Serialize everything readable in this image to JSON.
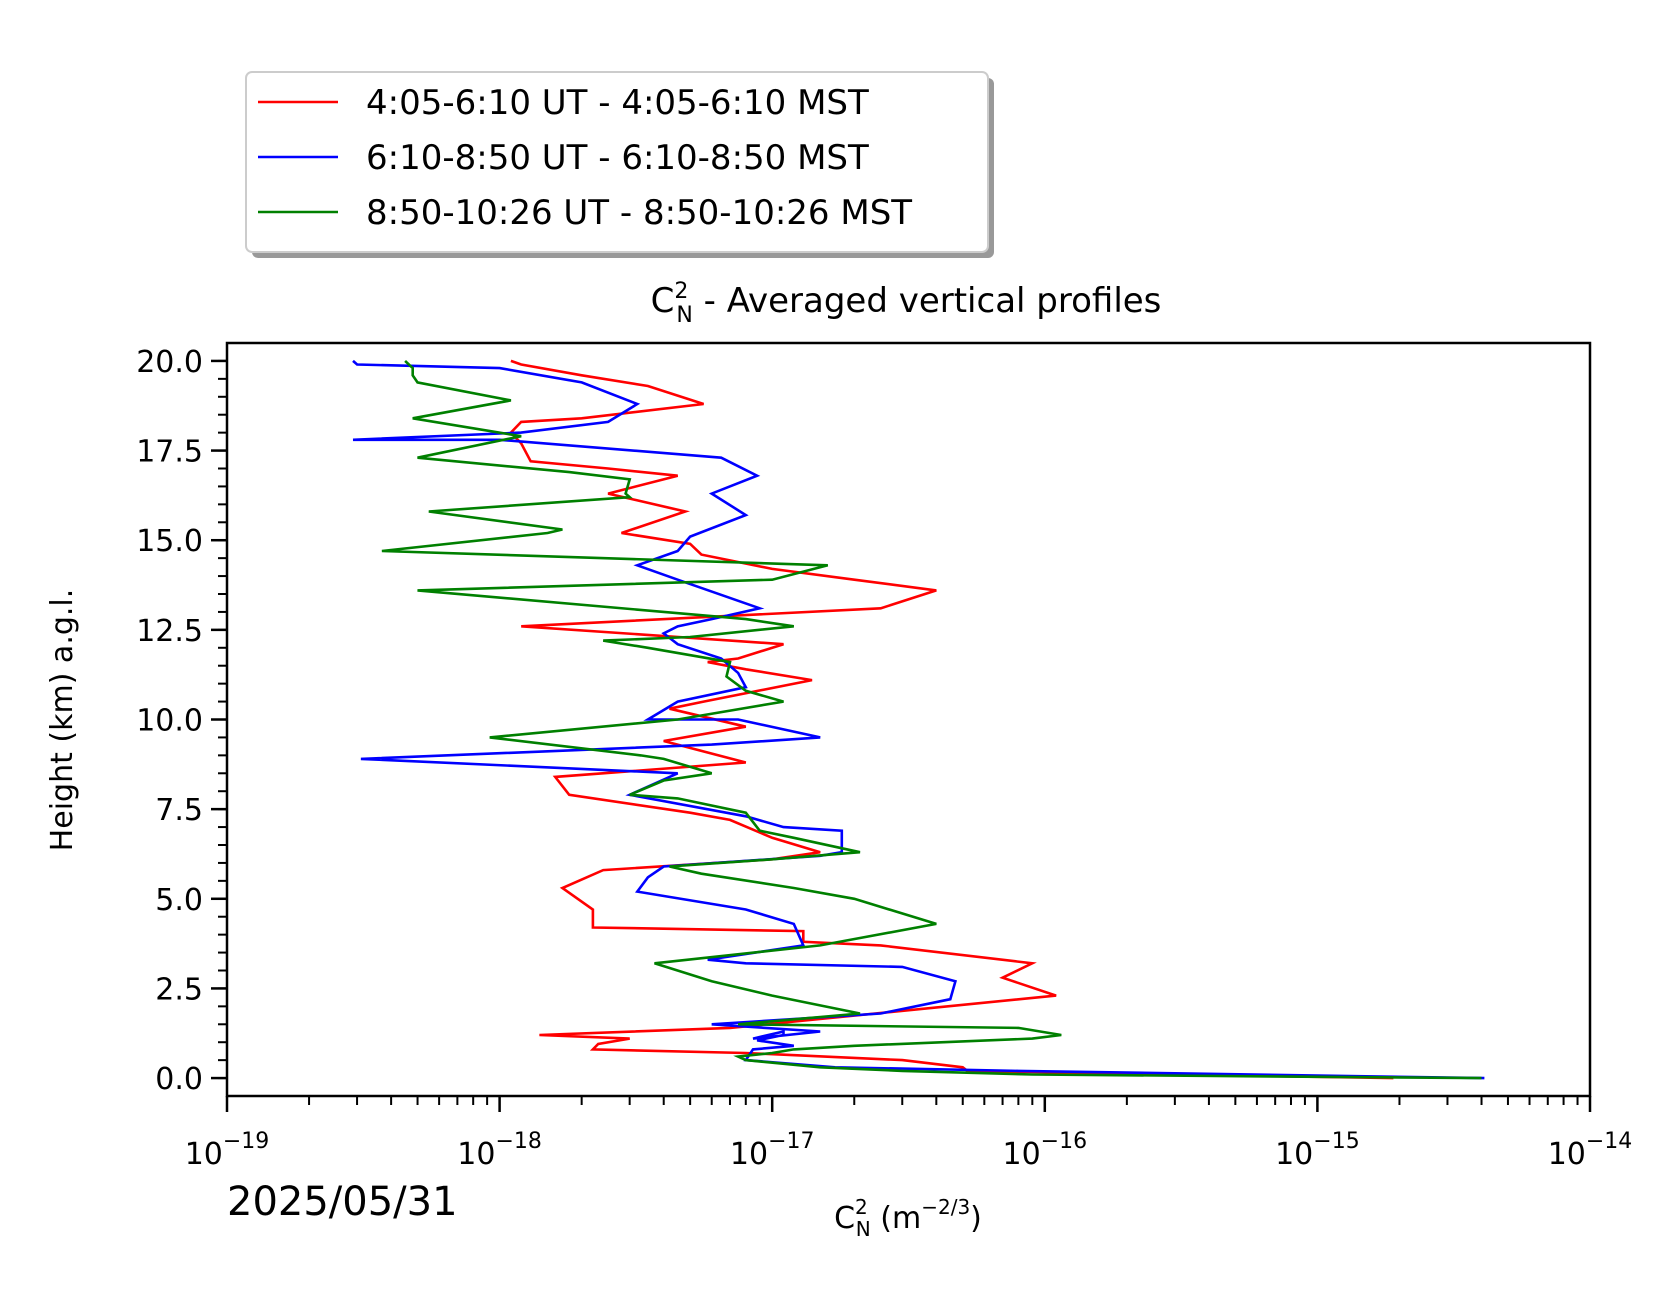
{
  "chart_data": {
    "type": "line",
    "title": "C_N^2 - Averaged vertical profiles",
    "title_parts": {
      "main": "C",
      "sup": "2",
      "sub": "N",
      "rest": " - Averaged vertical profiles"
    },
    "xlabel": "C_N^2 (m^-2/3)",
    "xlabel_parts": {
      "main": "C",
      "sup": "2",
      "sub": "N",
      "rest": " (m",
      "unit_sup": "−2/3",
      "close": ")"
    },
    "ylabel": "Height (km) a.g.l.",
    "x_scale": "log",
    "xlim": [
      1e-19,
      1e-14
    ],
    "ylim": [
      -0.5,
      20.5
    ],
    "x_ticks": [
      {
        "value": 1e-19,
        "base": "10",
        "exp": "−19"
      },
      {
        "value": 1e-18,
        "base": "10",
        "exp": "−18"
      },
      {
        "value": 1e-17,
        "base": "10",
        "exp": "−17"
      },
      {
        "value": 1e-16,
        "base": "10",
        "exp": "−16"
      },
      {
        "value": 1e-15,
        "base": "10",
        "exp": "−15"
      },
      {
        "value": 1e-14,
        "base": "10",
        "exp": "−14"
      }
    ],
    "y_ticks": [
      {
        "value": 0,
        "label": "0.0"
      },
      {
        "value": 2.5,
        "label": "2.5"
      },
      {
        "value": 5,
        "label": "5.0"
      },
      {
        "value": 7.5,
        "label": "7.5"
      },
      {
        "value": 10,
        "label": "10.0"
      },
      {
        "value": 12.5,
        "label": "12.5"
      },
      {
        "value": 15,
        "label": "15.0"
      },
      {
        "value": 17.5,
        "label": "17.5"
      },
      {
        "value": 20,
        "label": "20.0"
      }
    ],
    "date_label": "2025/05/31",
    "grid": false,
    "legend_position": "top-left, above plot",
    "series": [
      {
        "name": "4:05-6:10 UT - 4:05-6:10 MST",
        "color": "#ff0000",
        "points": [
          [
            1.9e-15,
            0.0
          ],
          [
            5.2e-17,
            0.2
          ],
          [
            5e-17,
            0.3
          ],
          [
            3e-17,
            0.5
          ],
          [
            8e-18,
            0.7
          ],
          [
            2.2e-18,
            0.8
          ],
          [
            2.3e-18,
            0.95
          ],
          [
            3e-18,
            1.1
          ],
          [
            1.4e-18,
            1.2
          ],
          [
            7e-18,
            1.4
          ],
          [
            1.1e-16,
            2.3
          ],
          [
            7e-17,
            2.8
          ],
          [
            9e-17,
            3.2
          ],
          [
            2.5e-17,
            3.7
          ],
          [
            1.3e-17,
            3.8
          ],
          [
            1.3e-17,
            4.1
          ],
          [
            2.2e-18,
            4.2
          ],
          [
            2.2e-18,
            4.7
          ],
          [
            1.7e-18,
            5.3
          ],
          [
            2.4e-18,
            5.8
          ],
          [
            1e-17,
            6.1
          ],
          [
            1.5e-17,
            6.3
          ],
          [
            1e-17,
            6.7
          ],
          [
            7e-18,
            7.2
          ],
          [
            5e-18,
            7.4
          ],
          [
            1.8e-18,
            7.9
          ],
          [
            1.6e-18,
            8.4
          ],
          [
            8e-18,
            8.8
          ],
          [
            4e-18,
            9.4
          ],
          [
            8e-18,
            9.8
          ],
          [
            4.2e-18,
            10.3
          ],
          [
            5.6e-18,
            10.5
          ],
          [
            1.4e-17,
            11.1
          ],
          [
            8e-18,
            11.4
          ],
          [
            5.8e-18,
            11.6
          ],
          [
            7.5e-18,
            11.7
          ],
          [
            1.1e-17,
            12.1
          ],
          [
            1.2e-18,
            12.6
          ],
          [
            2.5e-17,
            13.1
          ],
          [
            4e-17,
            13.6
          ],
          [
            2e-17,
            13.9
          ],
          [
            1e-17,
            14.2
          ],
          [
            5.5e-18,
            14.6
          ],
          [
            5e-18,
            14.9
          ],
          [
            2.8e-18,
            15.2
          ],
          [
            4.8e-18,
            15.8
          ],
          [
            2.5e-18,
            16.3
          ],
          [
            4.5e-18,
            16.8
          ],
          [
            2.5e-18,
            17.0
          ],
          [
            1.3e-18,
            17.2
          ],
          [
            1.2e-18,
            17.7
          ],
          [
            1.1e-18,
            18.0
          ],
          [
            1.2e-18,
            18.3
          ],
          [
            2e-18,
            18.4
          ],
          [
            5.6e-18,
            18.8
          ],
          [
            3.5e-18,
            19.3
          ],
          [
            2e-18,
            19.6
          ],
          [
            1.2e-18,
            19.9
          ],
          [
            1.1e-18,
            20.0
          ]
        ]
      },
      {
        "name": "6:10-8:50 UT - 6:10-8:50 MST",
        "color": "#0000ff",
        "points": [
          [
            4.1e-15,
            0.0
          ],
          [
            8e-17,
            0.2
          ],
          [
            1.7e-17,
            0.3
          ],
          [
            8e-18,
            0.5
          ],
          [
            8.5e-18,
            0.8
          ],
          [
            1.2e-17,
            0.9
          ],
          [
            8.8e-18,
            1.05
          ],
          [
            1.1e-17,
            1.2
          ],
          [
            1.1e-17,
            1.3
          ],
          [
            8.5e-18,
            1.1
          ],
          [
            1.5e-17,
            1.3
          ],
          [
            6e-18,
            1.5
          ],
          [
            2.5e-17,
            1.8
          ],
          [
            4.5e-17,
            2.2
          ],
          [
            4.7e-17,
            2.7
          ],
          [
            3e-17,
            3.1
          ],
          [
            8e-18,
            3.2
          ],
          [
            5.8e-18,
            3.3
          ],
          [
            1.3e-17,
            3.7
          ],
          [
            1.2e-17,
            4.3
          ],
          [
            8e-18,
            4.7
          ],
          [
            3.2e-18,
            5.2
          ],
          [
            3.5e-18,
            5.6
          ],
          [
            4e-18,
            5.9
          ],
          [
            1.5e-17,
            6.2
          ],
          [
            1.8e-17,
            6.3
          ],
          [
            1.8e-17,
            6.9
          ],
          [
            1.1e-17,
            7.0
          ],
          [
            8e-18,
            7.3
          ],
          [
            3e-18,
            7.9
          ],
          [
            4.5e-18,
            8.5
          ],
          [
            3.1e-19,
            8.9
          ],
          [
            6e-18,
            9.3
          ],
          [
            1.5e-17,
            9.5
          ],
          [
            7.5e-18,
            10.0
          ],
          [
            3.5e-18,
            10.0
          ],
          [
            4.5e-18,
            10.5
          ],
          [
            8e-18,
            10.9
          ],
          [
            7.5e-18,
            11.3
          ],
          [
            6.5e-18,
            11.7
          ],
          [
            4.5e-18,
            12.1
          ],
          [
            4e-18,
            12.4
          ],
          [
            4.5e-18,
            12.6
          ],
          [
            6e-18,
            12.8
          ],
          [
            9e-18,
            13.1
          ],
          [
            4.5e-18,
            13.9
          ],
          [
            3.2e-18,
            14.3
          ],
          [
            4.5e-18,
            14.7
          ],
          [
            5e-18,
            15.1
          ],
          [
            8e-18,
            15.7
          ],
          [
            6e-18,
            16.3
          ],
          [
            8.8e-18,
            16.8
          ],
          [
            6.5e-18,
            17.3
          ],
          [
            1e-18,
            17.8
          ],
          [
            2.9e-19,
            17.8
          ],
          [
            1.2e-18,
            18.0
          ],
          [
            2.5e-18,
            18.3
          ],
          [
            3.2e-18,
            18.8
          ],
          [
            2e-18,
            19.4
          ],
          [
            1e-18,
            19.8
          ],
          [
            3e-19,
            19.9
          ],
          [
            2.9e-19,
            20.0
          ]
        ]
      },
      {
        "name": "8:50-10:26 UT - 8:50-10:26 MST",
        "color": "#008000",
        "points": [
          [
            4e-15,
            0.0
          ],
          [
            9e-17,
            0.1
          ],
          [
            3e-17,
            0.2
          ],
          [
            1.5e-17,
            0.3
          ],
          [
            8e-18,
            0.5
          ],
          [
            7.5e-18,
            0.6
          ],
          [
            1e-17,
            0.7
          ],
          [
            1.2e-17,
            0.8
          ],
          [
            2e-17,
            0.9
          ],
          [
            9e-17,
            1.1
          ],
          [
            1.15e-16,
            1.2
          ],
          [
            8e-17,
            1.4
          ],
          [
            7.5e-18,
            1.5
          ],
          [
            2.1e-17,
            1.8
          ],
          [
            1e-17,
            2.3
          ],
          [
            6e-18,
            2.7
          ],
          [
            3.7e-18,
            3.2
          ],
          [
            1.5e-17,
            3.7
          ],
          [
            4e-17,
            4.3
          ],
          [
            2e-17,
            5.0
          ],
          [
            1.2e-17,
            5.3
          ],
          [
            5.5e-18,
            5.7
          ],
          [
            4.2e-18,
            5.9
          ],
          [
            1e-17,
            6.1
          ],
          [
            2.1e-17,
            6.3
          ],
          [
            1.2e-17,
            6.7
          ],
          [
            9e-18,
            6.9
          ],
          [
            8e-18,
            7.4
          ],
          [
            4.5e-18,
            7.8
          ],
          [
            3e-18,
            7.9
          ],
          [
            4e-18,
            8.3
          ],
          [
            6e-18,
            8.5
          ],
          [
            4e-18,
            8.9
          ],
          [
            3.3e-18,
            9.0
          ],
          [
            9.2e-19,
            9.5
          ],
          [
            4.5e-18,
            10.0
          ],
          [
            1.1e-17,
            10.5
          ],
          [
            8e-18,
            10.8
          ],
          [
            6.8e-18,
            11.2
          ],
          [
            7e-18,
            11.6
          ],
          [
            3.5e-18,
            12.0
          ],
          [
            2.4e-18,
            12.2
          ],
          [
            5e-18,
            12.3
          ],
          [
            1.2e-17,
            12.6
          ],
          [
            8e-18,
            12.8
          ],
          [
            5e-19,
            13.6
          ],
          [
            1e-17,
            13.9
          ],
          [
            1.6e-17,
            14.3
          ],
          [
            3.7e-19,
            14.7
          ],
          [
            1.5e-18,
            15.2
          ],
          [
            1.7e-18,
            15.3
          ],
          [
            5.5e-19,
            15.8
          ],
          [
            3e-18,
            16.2
          ],
          [
            2.9e-18,
            16.3
          ],
          [
            3e-18,
            16.7
          ],
          [
            1.8e-18,
            16.9
          ],
          [
            5e-19,
            17.3
          ],
          [
            1.2e-18,
            17.9
          ],
          [
            4.8e-19,
            18.4
          ],
          [
            1.1e-18,
            18.9
          ],
          [
            5e-19,
            19.4
          ],
          [
            4.8e-19,
            19.6
          ],
          [
            4.8e-19,
            19.8
          ],
          [
            4.5e-19,
            20.0
          ]
        ]
      }
    ]
  }
}
